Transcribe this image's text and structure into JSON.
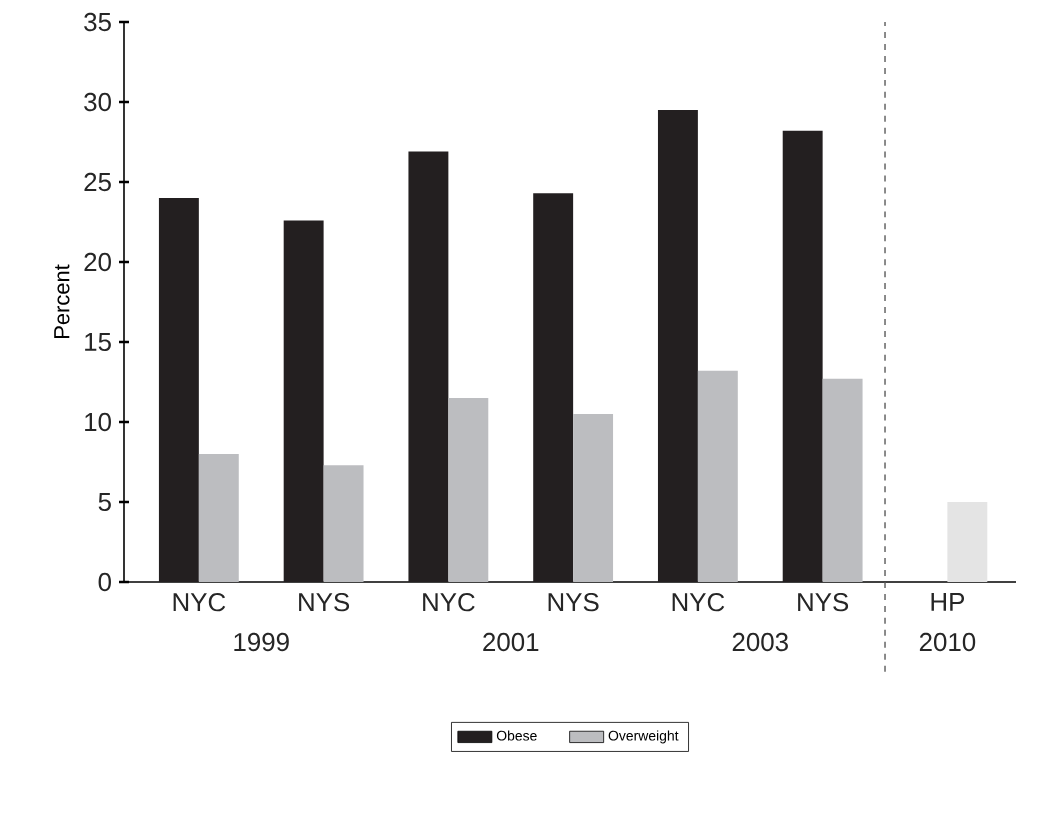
{
  "chart_data": {
    "type": "bar",
    "ylabel": "Percent",
    "categories": [
      "NYC",
      "NYS",
      "NYC",
      "NYS",
      "NYC",
      "NYS",
      "HP"
    ],
    "series": [
      {
        "name": "Obese",
        "color": "#231f20",
        "values": [
          24.0,
          22.6,
          26.9,
          24.3,
          29.5,
          28.2,
          null
        ]
      },
      {
        "name": "Overweight",
        "color": "#bcbdc0",
        "colors": [
          "#bcbdc0",
          "#bcbdc0",
          "#bcbdc0",
          "#bcbdc0",
          "#bcbdc0",
          "#bcbdc0",
          "#e4e4e4"
        ],
        "values": [
          8.0,
          7.3,
          11.5,
          10.5,
          13.2,
          12.7,
          5.0
        ]
      }
    ],
    "annotations": [
      "1999",
      "2001",
      "2003",
      "2010"
    ],
    "ylim": [
      0,
      35
    ],
    "yticks": [
      0,
      5,
      10,
      15,
      20,
      25,
      30,
      35
    ],
    "grid": false,
    "legend": "bottom"
  }
}
